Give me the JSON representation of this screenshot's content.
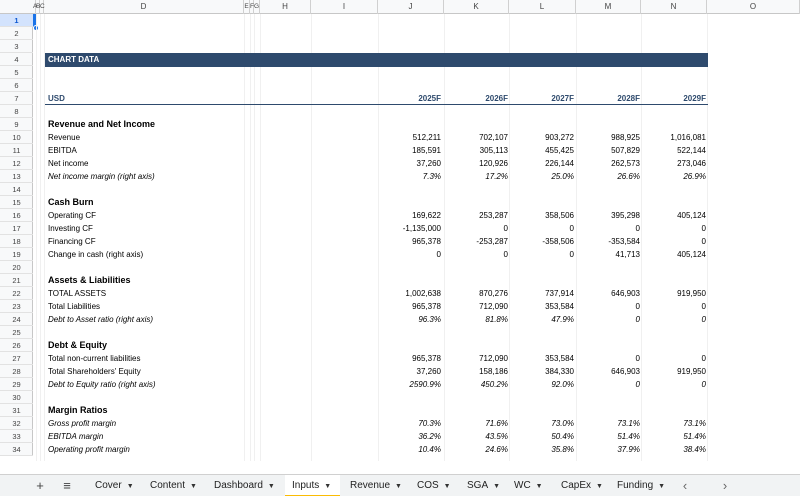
{
  "columns": [
    "A",
    "B",
    "C",
    "D",
    "E",
    "F",
    "G",
    "H",
    "I",
    "J",
    "K",
    "L",
    "M",
    "N",
    "O"
  ],
  "rows": [
    "1",
    "2",
    "3",
    "4",
    "5",
    "6",
    "7",
    "8",
    "9",
    "10",
    "11",
    "12",
    "13",
    "14",
    "15",
    "16",
    "17",
    "18",
    "19",
    "20",
    "21",
    "22",
    "23",
    "24",
    "25",
    "26",
    "27",
    "28",
    "29",
    "30",
    "31",
    "32",
    "33",
    "34"
  ],
  "sheet": {
    "banner": "CHART DATA",
    "unit_label": "USD",
    "years": [
      "2025F",
      "2026F",
      "2027F",
      "2028F",
      "2029F"
    ],
    "sections": [
      {
        "title": "Revenue and Net Income",
        "rows": [
          {
            "label": "Revenue",
            "italic": false,
            "values": [
              "512,211",
              "702,107",
              "903,272",
              "988,925",
              "1,016,081"
            ]
          },
          {
            "label": "EBITDA",
            "italic": false,
            "values": [
              "185,591",
              "305,113",
              "455,425",
              "507,829",
              "522,144"
            ]
          },
          {
            "label": "Net income",
            "italic": false,
            "values": [
              "37,260",
              "120,926",
              "226,144",
              "262,573",
              "273,046"
            ]
          },
          {
            "label": "Net income margin (right axis)",
            "italic": true,
            "values": [
              "7.3%",
              "17.2%",
              "25.0%",
              "26.6%",
              "26.9%"
            ]
          }
        ]
      },
      {
        "title": "Cash Burn",
        "rows": [
          {
            "label": "Operating CF",
            "italic": false,
            "values": [
              "169,622",
              "253,287",
              "358,506",
              "395,298",
              "405,124"
            ]
          },
          {
            "label": "Investing CF",
            "italic": false,
            "values": [
              "-1,135,000",
              "0",
              "0",
              "0",
              "0"
            ]
          },
          {
            "label": "Financing CF",
            "italic": false,
            "values": [
              "965,378",
              "-253,287",
              "-358,506",
              "-353,584",
              "0"
            ]
          },
          {
            "label": "Change in cash (right axis)",
            "italic": false,
            "values": [
              "0",
              "0",
              "0",
              "41,713",
              "405,124"
            ]
          }
        ]
      },
      {
        "title": "Assets & Liabilities",
        "rows": [
          {
            "label": "TOTAL ASSETS",
            "italic": false,
            "values": [
              "1,002,638",
              "870,276",
              "737,914",
              "646,903",
              "919,950"
            ]
          },
          {
            "label": "Total Liabilities",
            "italic": false,
            "values": [
              "965,378",
              "712,090",
              "353,584",
              "0",
              "0"
            ]
          },
          {
            "label": "Debt to Asset ratio (right axis)",
            "italic": true,
            "values": [
              "96.3%",
              "81.8%",
              "47.9%",
              "0",
              "0"
            ]
          }
        ]
      },
      {
        "title": "Debt & Equity",
        "rows": [
          {
            "label": "Total non-current liabilities",
            "italic": false,
            "values": [
              "965,378",
              "712,090",
              "353,584",
              "0",
              "0"
            ]
          },
          {
            "label": "Total Shareholders' Equity",
            "italic": false,
            "values": [
              "37,260",
              "158,186",
              "384,330",
              "646,903",
              "919,950"
            ]
          },
          {
            "label": "Debt to Equity ratio (right axis)",
            "italic": true,
            "values": [
              "2590.9%",
              "450.2%",
              "92.0%",
              "0",
              "0"
            ]
          }
        ]
      },
      {
        "title": "Margin Ratios",
        "rows": [
          {
            "label": "Gross profit margin",
            "italic": true,
            "values": [
              "70.3%",
              "71.6%",
              "73.0%",
              "73.1%",
              "73.1%"
            ]
          },
          {
            "label": "EBITDA margin",
            "italic": true,
            "values": [
              "36.2%",
              "43.5%",
              "50.4%",
              "51.4%",
              "51.4%"
            ]
          },
          {
            "label": "Operating profit margin",
            "italic": true,
            "values": [
              "10.4%",
              "24.6%",
              "35.8%",
              "37.9%",
              "38.4%"
            ]
          }
        ]
      }
    ]
  },
  "tabs": [
    {
      "label": "Cover",
      "active": false
    },
    {
      "label": "Content",
      "active": false
    },
    {
      "label": "Dashboard",
      "active": false
    },
    {
      "label": "Inputs",
      "active": true
    },
    {
      "label": "Revenue",
      "active": false
    },
    {
      "label": "COS",
      "active": false
    },
    {
      "label": "SGA",
      "active": false
    },
    {
      "label": "WC",
      "active": false
    },
    {
      "label": "CapEx",
      "active": false
    },
    {
      "label": "Funding",
      "active": false
    }
  ],
  "icons": {
    "add_sheet": "plus-icon",
    "all_sheets": "menu-icon",
    "prev": "chevron-left-icon",
    "next": "chevron-right-icon"
  },
  "colors": {
    "banner": "#2e4a6d",
    "active_tab_underline": "#fbbc04",
    "selection": "#1a73e8"
  }
}
